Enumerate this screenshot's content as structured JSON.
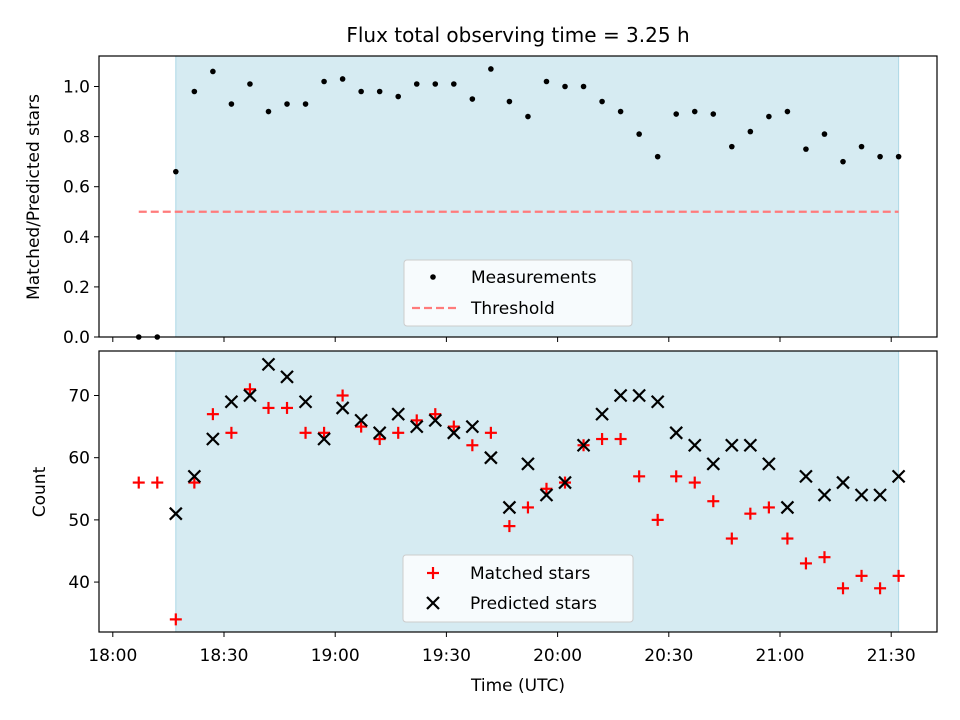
{
  "chart_data": [
    {
      "type": "scatter",
      "title": "Flux total observing time = 3.25 h",
      "xlabel": "",
      "ylabel": "Matched/Predicted stars",
      "ylim": [
        0,
        1.12
      ],
      "yticks": [
        "0.0",
        "0.2",
        "0.4",
        "0.6",
        "0.8",
        "1.0"
      ],
      "grid": false,
      "legend_position": "lower center",
      "shaded_region": {
        "x_start_min": 17,
        "x_end_min": 212,
        "color": "#add8e6"
      },
      "threshold": {
        "name": "Threshold",
        "y": 0.5,
        "x_start_min": 7,
        "x_end_min": 212,
        "color": "#ff7b7b"
      },
      "series": [
        {
          "name": "Measurements",
          "marker": "dot",
          "color": "#000000",
          "x_min": [
            7,
            12,
            17,
            22,
            27,
            32,
            37,
            42,
            47,
            52,
            57,
            62,
            67,
            72,
            77,
            82,
            87,
            92,
            97,
            102,
            107,
            112,
            117,
            122,
            127,
            132,
            137,
            142,
            147,
            152,
            157,
            162,
            167,
            172,
            177,
            182,
            187,
            192,
            197,
            202,
            207,
            212
          ],
          "values": [
            0.0,
            0.0,
            0.66,
            0.98,
            1.06,
            0.93,
            1.01,
            0.9,
            0.93,
            0.93,
            1.02,
            1.03,
            0.98,
            0.98,
            0.96,
            1.01,
            1.01,
            1.01,
            0.95,
            1.07,
            0.94,
            0.88,
            1.02,
            1.0,
            1.0,
            0.94,
            0.9,
            0.81,
            0.72,
            0.89,
            0.9,
            0.89,
            0.76,
            0.82,
            0.88,
            0.9,
            0.75,
            0.81,
            0.7,
            0.76,
            0.72,
            0.72
          ]
        }
      ]
    },
    {
      "type": "scatter",
      "title": "",
      "xlabel": "Time (UTC)",
      "ylabel": "Count",
      "ylim": [
        32,
        78
      ],
      "yticks": [
        "40",
        "50",
        "60",
        "70"
      ],
      "xticks": [
        "18:00",
        "18:30",
        "19:00",
        "19:30",
        "20:00",
        "20:30",
        "21:00",
        "21:30"
      ],
      "xticks_min": [
        0,
        30,
        60,
        90,
        120,
        150,
        180,
        210
      ],
      "grid": false,
      "legend_position": "lower center",
      "shaded_region": {
        "x_start_min": 17,
        "x_end_min": 212,
        "color": "#add8e6"
      },
      "series": [
        {
          "name": "Matched stars",
          "marker": "plus",
          "color": "#ff0000",
          "x_min": [
            7,
            12,
            17,
            22,
            27,
            32,
            37,
            42,
            47,
            52,
            57,
            62,
            67,
            72,
            77,
            82,
            87,
            92,
            97,
            102,
            107,
            112,
            117,
            122,
            127,
            132,
            137,
            142,
            147,
            152,
            157,
            162,
            167,
            172,
            177,
            182,
            187,
            192,
            197,
            202,
            207,
            212
          ],
          "values": [
            56,
            56,
            34,
            56,
            67,
            64,
            71,
            68,
            68,
            64,
            64,
            70,
            65,
            63,
            64,
            66,
            67,
            65,
            62,
            64,
            49,
            52,
            55,
            56,
            62,
            63,
            63,
            57,
            50,
            57,
            56,
            53,
            47,
            51,
            52,
            47,
            43,
            44,
            39,
            41,
            39,
            41
          ]
        },
        {
          "name": "Predicted stars",
          "marker": "x",
          "color": "#000000",
          "x_min": [
            17,
            22,
            27,
            32,
            37,
            42,
            47,
            52,
            57,
            62,
            67,
            72,
            77,
            82,
            87,
            92,
            97,
            102,
            107,
            112,
            117,
            122,
            127,
            132,
            137,
            142,
            147,
            152,
            157,
            162,
            167,
            172,
            177,
            182,
            187,
            192,
            197,
            202,
            207,
            212
          ],
          "values": [
            51,
            57,
            63,
            69,
            70,
            75,
            73,
            69,
            63,
            68,
            66,
            64,
            67,
            65,
            66,
            64,
            65,
            60,
            52,
            59,
            54,
            56,
            62,
            67,
            70,
            70,
            69,
            64,
            62,
            59,
            62,
            62,
            59,
            52,
            57,
            54,
            56,
            54,
            54,
            57
          ]
        }
      ]
    }
  ]
}
